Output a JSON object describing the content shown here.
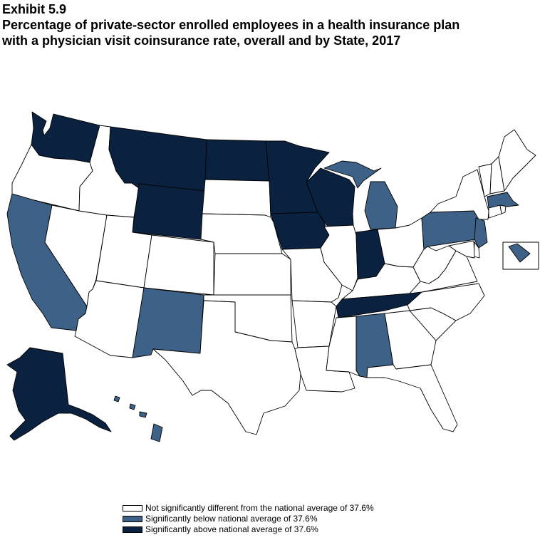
{
  "title": {
    "exhibit": "Exhibit 5.9",
    "line1": "Percentage of private-sector enrolled employees in a health insurance plan",
    "line2": "with a physician visit coinsurance rate, overall and by State, 2017"
  },
  "colors": {
    "not_significant": "#ffffff",
    "below": "#3d6187",
    "above": "#0a2240",
    "border": "#000000"
  },
  "legend": [
    {
      "key": "not_significant",
      "label": "Not significantly different from the national average of 37.6%"
    },
    {
      "key": "below",
      "label": "Significantly below national average of 37.6%"
    },
    {
      "key": "above",
      "label": "Significantly above national average of 37.6%"
    }
  ],
  "states": {
    "WA": "above",
    "OR": "not_significant",
    "CA": "below",
    "NV": "not_significant",
    "ID": "not_significant",
    "MT": "above",
    "WY": "above",
    "UT": "not_significant",
    "AZ": "not_significant",
    "CO": "not_significant",
    "NM": "below",
    "ND": "above",
    "SD": "not_significant",
    "NE": "not_significant",
    "KS": "not_significant",
    "OK": "not_significant",
    "TX": "not_significant",
    "MN": "above",
    "IA": "above",
    "MO": "not_significant",
    "AR": "not_significant",
    "LA": "not_significant",
    "WI": "above",
    "IL": "not_significant",
    "MI": "below",
    "IN": "above",
    "OH": "not_significant",
    "KY": "not_significant",
    "TN": "above",
    "MS": "not_significant",
    "AL": "below",
    "GA": "not_significant",
    "FL": "not_significant",
    "SC": "not_significant",
    "NC": "not_significant",
    "VA": "not_significant",
    "WV": "not_significant",
    "PA": "below",
    "NY": "not_significant",
    "NJ": "below",
    "DE": "not_significant",
    "MD": "not_significant",
    "DC": "below",
    "CT": "not_significant",
    "RI": "not_significant",
    "MA": "below",
    "VT": "not_significant",
    "NH": "not_significant",
    "ME": "not_significant",
    "AK": "above",
    "HI": "below"
  }
}
